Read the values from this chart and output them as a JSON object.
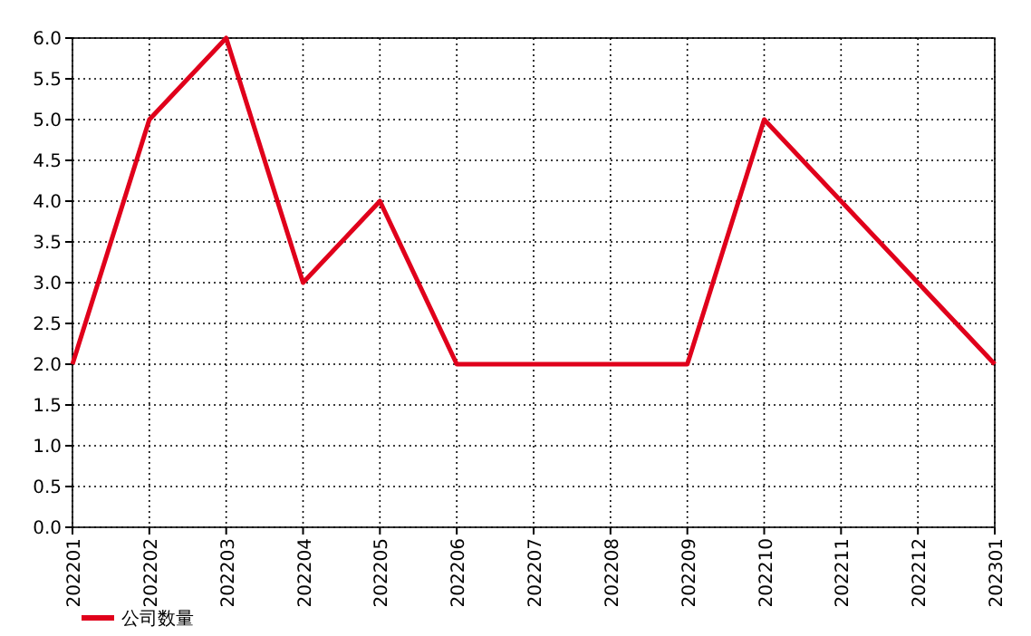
{
  "chart_data": {
    "type": "line",
    "categories": [
      "202201",
      "202202",
      "202203",
      "202204",
      "202205",
      "202206",
      "202207",
      "202208",
      "202209",
      "202210",
      "202211",
      "202212",
      "202301"
    ],
    "series": [
      {
        "name": "公司数量",
        "color": "#e0001b",
        "values": [
          2,
          5,
          6,
          3,
          4,
          2,
          2,
          2,
          2,
          5,
          4,
          3,
          2
        ]
      }
    ],
    "ylim": [
      0,
      6
    ],
    "yticks": [
      {
        "value": 0,
        "label": "0.0"
      },
      {
        "value": 0.5,
        "label": "0.5"
      },
      {
        "value": 1,
        "label": "1.0"
      },
      {
        "value": 1.5,
        "label": "1.5"
      },
      {
        "value": 2,
        "label": "2.0"
      },
      {
        "value": 2.5,
        "label": "2.5"
      },
      {
        "value": 3,
        "label": "3.0"
      },
      {
        "value": 3.5,
        "label": "3.5"
      },
      {
        "value": 4,
        "label": "4.0"
      },
      {
        "value": 4.5,
        "label": "4.5"
      },
      {
        "value": 5,
        "label": "5.0"
      },
      {
        "value": 5.5,
        "label": "5.5"
      },
      {
        "value": 6,
        "label": "6.0"
      }
    ],
    "grid": true,
    "legend": "bottom left",
    "marker": "none",
    "line_style": "solid"
  }
}
